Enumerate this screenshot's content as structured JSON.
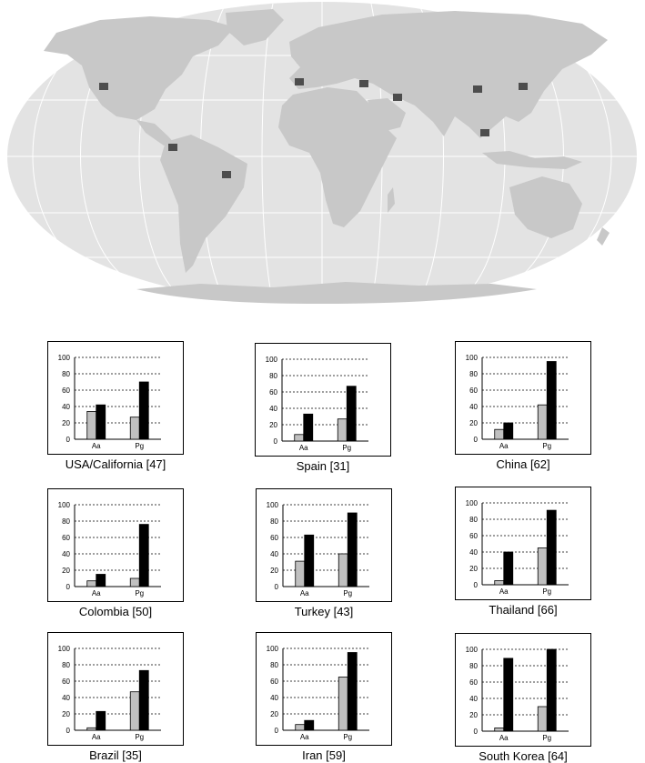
{
  "figure": {
    "map": {
      "land_color": "#c8c8c8",
      "ocean_color": "#e3e3e3",
      "marker_color": "#4d4d4d",
      "graticule_color": "#ffffff"
    },
    "series_colors": {
      "Aa": "#c0c0c0",
      "Pg": "#000000"
    }
  },
  "chart_data": [
    {
      "type": "bar",
      "title": "USA/California [47]",
      "categories": [
        "Aa",
        "Pg"
      ],
      "series": [
        {
          "values": [
            34,
            27
          ]
        },
        {
          "values": [
            42,
            70
          ]
        }
      ],
      "ylim": [
        0,
        100
      ],
      "yticks": [
        "0",
        "20",
        "40",
        "60",
        "80",
        "100"
      ],
      "grid": true
    },
    {
      "type": "bar",
      "title": "Spain [31]",
      "categories": [
        "Aa",
        "Pg"
      ],
      "series": [
        {
          "values": [
            8,
            27
          ]
        },
        {
          "values": [
            33,
            67
          ]
        }
      ],
      "ylim": [
        0,
        100
      ],
      "yticks": [
        "0",
        "20",
        "40",
        "60",
        "80",
        "100"
      ],
      "grid": true
    },
    {
      "type": "bar",
      "title": "China [62]",
      "categories": [
        "Aa",
        "Pg"
      ],
      "series": [
        {
          "values": [
            12,
            42
          ]
        },
        {
          "values": [
            20,
            95
          ]
        }
      ],
      "ylim": [
        0,
        100
      ],
      "yticks": [
        "0",
        "20",
        "40",
        "60",
        "80",
        "100"
      ],
      "grid": true
    },
    {
      "type": "bar",
      "title": "Colombia [50]",
      "categories": [
        "Aa",
        "Pg"
      ],
      "series": [
        {
          "values": [
            7,
            10
          ]
        },
        {
          "values": [
            15,
            76
          ]
        }
      ],
      "ylim": [
        0,
        100
      ],
      "yticks": [
        "0",
        "20",
        "40",
        "60",
        "80",
        "100"
      ],
      "grid": true
    },
    {
      "type": "bar",
      "title": "Turkey [43]",
      "categories": [
        "Aa",
        "Pg"
      ],
      "series": [
        {
          "values": [
            31,
            40
          ]
        },
        {
          "values": [
            63,
            90
          ]
        }
      ],
      "ylim": [
        0,
        100
      ],
      "yticks": [
        "0",
        "20",
        "40",
        "60",
        "80",
        "100"
      ],
      "grid": true
    },
    {
      "type": "bar",
      "title": "Thailand [66]",
      "categories": [
        "Aa",
        "Pg"
      ],
      "series": [
        {
          "values": [
            5,
            45
          ]
        },
        {
          "values": [
            40,
            91
          ]
        }
      ],
      "ylim": [
        0,
        100
      ],
      "yticks": [
        "0",
        "20",
        "40",
        "60",
        "80",
        "100"
      ],
      "grid": true
    },
    {
      "type": "bar",
      "title": "Brazil [35]",
      "categories": [
        "Aa",
        "Pg"
      ],
      "series": [
        {
          "values": [
            3,
            47
          ]
        },
        {
          "values": [
            23,
            73
          ]
        }
      ],
      "ylim": [
        0,
        100
      ],
      "yticks": [
        "0",
        "20",
        "40",
        "60",
        "80",
        "100"
      ],
      "grid": true
    },
    {
      "type": "bar",
      "title": "Iran [59]",
      "categories": [
        "Aa",
        "Pg"
      ],
      "series": [
        {
          "values": [
            7,
            65
          ]
        },
        {
          "values": [
            12,
            95
          ]
        }
      ],
      "ylim": [
        0,
        100
      ],
      "yticks": [
        "0",
        "20",
        "40",
        "60",
        "80",
        "100"
      ],
      "grid": true
    },
    {
      "type": "bar",
      "title": "South Korea [64]",
      "categories": [
        "Aa",
        "Pg"
      ],
      "series": [
        {
          "values": [
            4,
            30
          ]
        },
        {
          "values": [
            89,
            100
          ]
        }
      ],
      "ylim": [
        0,
        100
      ],
      "yticks": [
        "0",
        "20",
        "40",
        "60",
        "80",
        "100"
      ],
      "grid": true
    }
  ]
}
